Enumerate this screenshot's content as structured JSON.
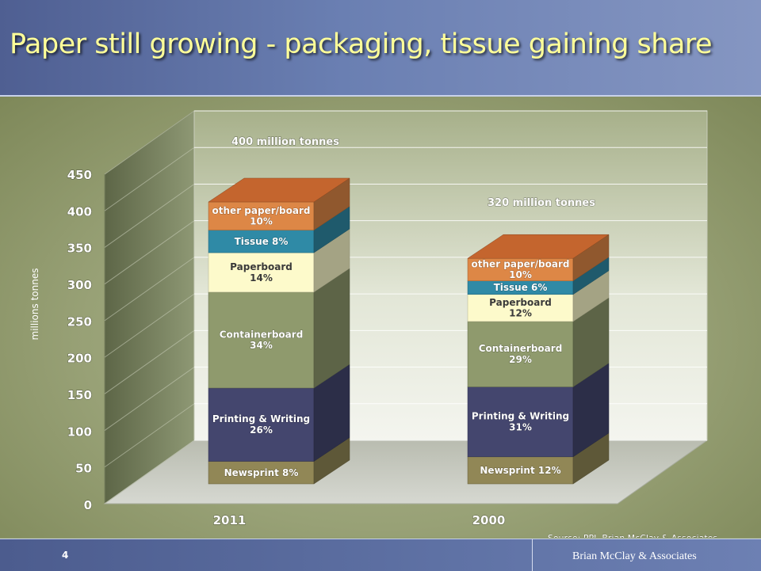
{
  "slide": {
    "title": "Paper still growing - packaging, tissue gaining share",
    "page_number": "4",
    "footer_brand": "Brian McClay & Associates"
  },
  "colors": {
    "newsprint": "#918756",
    "printing_writing": "#44466e",
    "containerboard": "#8f9a6d",
    "paperboard": "#fdfacb",
    "tissue": "#2f8aa6",
    "other": "#dd8746",
    "axis_text": "#ffffff",
    "label_text": "#ffffff",
    "title_text": "#ffff99"
  },
  "chart_data": {
    "type": "bar",
    "stacked": true,
    "three_d": true,
    "categories": [
      "2011",
      "2000"
    ],
    "ylabel": "millions tonnes",
    "ylim": [
      0,
      450
    ],
    "yticks": [
      0,
      50,
      100,
      150,
      200,
      250,
      300,
      350,
      400,
      450
    ],
    "grid": true,
    "totals": [
      "400 million tonnes",
      "320 million tonnes"
    ],
    "series": [
      {
        "key": "newsprint",
        "values": [
          32,
          38.4
        ],
        "labels": [
          "Newsprint  8%",
          "Newsprint 12%"
        ]
      },
      {
        "key": "printing_writing",
        "values": [
          104,
          99.2
        ],
        "labels": [
          "Printing & Writing\n26%",
          "Printing & Writing\n31%"
        ]
      },
      {
        "key": "containerboard",
        "values": [
          136,
          92.8
        ],
        "labels": [
          "Containerboard\n34%",
          "Containerboard\n29%"
        ]
      },
      {
        "key": "paperboard",
        "values": [
          56,
          38.4
        ],
        "labels": [
          "Paperboard\n14%",
          "Paperboard\n12%"
        ]
      },
      {
        "key": "tissue",
        "values": [
          32,
          19.2
        ],
        "labels": [
          "Tissue  8%",
          "Tissue 6%"
        ]
      },
      {
        "key": "other",
        "values": [
          40,
          32
        ],
        "labels": [
          "other paper/board\n10%",
          "other paper/board\n10%"
        ]
      }
    ],
    "source": "Source: PPI, Brian McClay & Associates"
  }
}
